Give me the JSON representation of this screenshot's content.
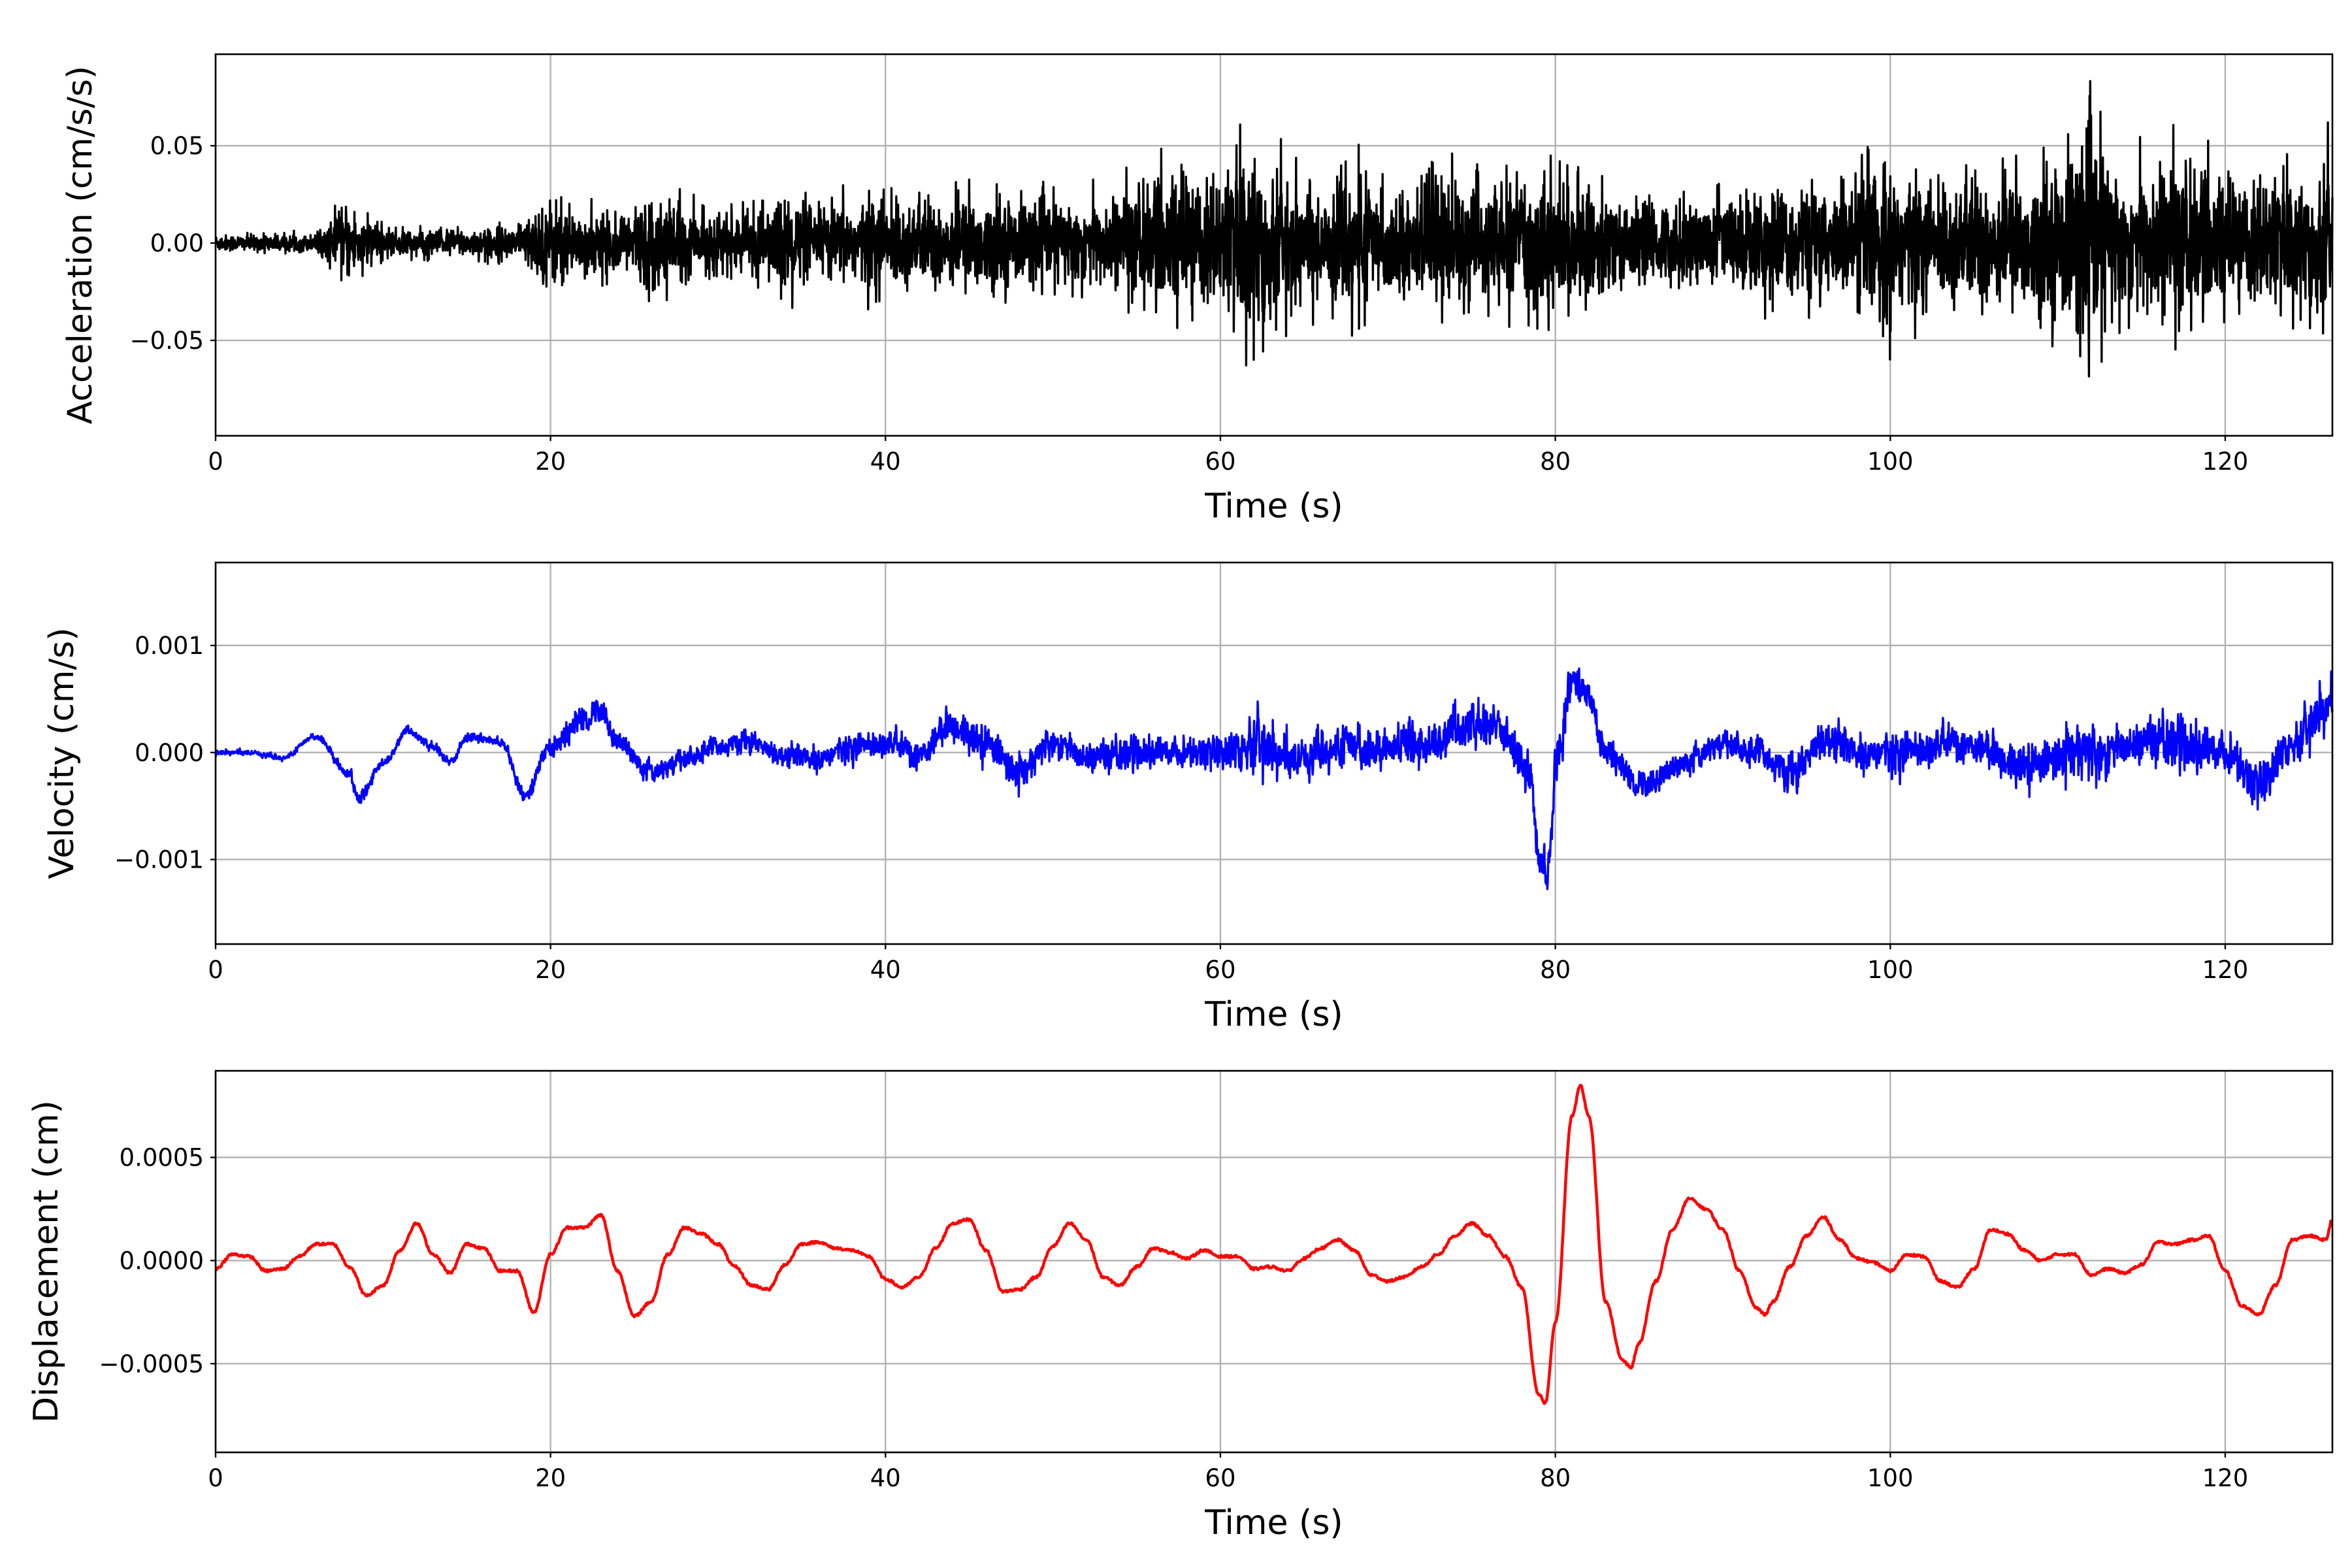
{
  "chart_data": [
    {
      "type": "line",
      "title": "",
      "xlabel": "Time (s)",
      "ylabel": "Acceleration (cm/s/s)",
      "color": "#000000",
      "xlim": [
        0,
        126.4
      ],
      "ylim": [
        -0.099,
        0.097
      ],
      "xticks": [
        0,
        20,
        40,
        60,
        80,
        100,
        120
      ],
      "xtick_labels": [
        "0",
        "20",
        "40",
        "60",
        "80",
        "100",
        "120"
      ],
      "yticks": [
        -0.05,
        0,
        0.05
      ],
      "ytick_labels": [
        "−0.05",
        "0.00",
        "0.05"
      ],
      "grid": true,
      "signal": "broadband noise, zero mean",
      "trend_t": [
        0,
        126.4
      ],
      "trend_v": [
        0,
        0
      ],
      "envelope_step_s": 2,
      "peak_envelope": [
        0.006,
        0.006,
        0.006,
        0.006,
        0.028,
        0.01,
        0.01,
        0.01,
        0.01,
        0.012,
        0.033,
        0.022,
        0.02,
        0.035,
        0.025,
        0.02,
        0.022,
        0.035,
        0.025,
        0.03,
        0.035,
        0.03,
        0.035,
        0.032,
        0.03,
        0.03,
        0.03,
        0.035,
        0.045,
        0.05,
        0.045,
        0.08,
        0.045,
        0.04,
        0.05,
        0.035,
        0.035,
        0.05,
        0.04,
        0.045,
        0.05,
        0.04,
        0.03,
        0.03,
        0.03,
        0.03,
        0.04,
        0.04,
        0.04,
        0.045,
        0.065,
        0.04,
        0.045,
        0.05,
        0.045,
        0.055,
        0.08,
        0.045,
        0.06,
        0.055,
        0.045,
        0.045,
        0.05,
        0.06
      ]
    },
    {
      "type": "line",
      "title": "",
      "xlabel": "Time (s)",
      "ylabel": "Velocity (cm/s)",
      "color": "#0000ff",
      "xlim": [
        0,
        126.4
      ],
      "ylim": [
        -0.00179,
        0.001775
      ],
      "xticks": [
        0,
        20,
        40,
        60,
        80,
        100,
        120
      ],
      "xtick_labels": [
        "0",
        "20",
        "40",
        "60",
        "80",
        "100",
        "120"
      ],
      "yticks": [
        -0.001,
        0,
        0.001
      ],
      "ytick_labels": [
        "−0.001",
        "0.000",
        "0.001"
      ],
      "grid": true,
      "trend_t": [
        0,
        2,
        4,
        6,
        8,
        8.5,
        10,
        11.5,
        13,
        14,
        15,
        17,
        18.5,
        20,
        22,
        23,
        24,
        26,
        28,
        30,
        32,
        34,
        36,
        38,
        40,
        42,
        44,
        46,
        48,
        50,
        52,
        56,
        60,
        62,
        64,
        68,
        72,
        75,
        77,
        78.5,
        79,
        79.5,
        80.2,
        81,
        82,
        83,
        85,
        88,
        90,
        92,
        94,
        96,
        98,
        100,
        104,
        108,
        112,
        116,
        120,
        122,
        124,
        126,
        126.4
      ],
      "trend_v": [
        0,
        0,
        -5e-05,
        0.00015,
        -0.0002,
        -0.00045,
        -0.0001,
        0.0002,
        5e-05,
        -0.0001,
        0.00015,
        0.0001,
        -0.0004,
        5e-05,
        0.0003,
        0.0004,
        0.0001,
        -0.0002,
        -5e-05,
        5e-05,
        0.0001,
        -5e-05,
        -5e-05,
        5e-05,
        0.0001,
        0,
        0.00025,
        0.0001,
        -0.0002,
        0.0001,
        -5e-05,
        0,
        0,
        0.0001,
        -5e-05,
        5e-05,
        5e-05,
        0.00025,
        0.0002,
        -0.0002,
        -0.001,
        -0.0011,
        0,
        0.0007,
        0.0005,
        0,
        -0.0003,
        -0.0001,
        0.0001,
        0,
        -0.0002,
        0.0001,
        0,
        0,
        0.0001,
        -0.0001,
        0,
        0.0001,
        0,
        -0.0003,
        0.0001,
        0.0004,
        0.0005
      ],
      "envelope_step_s": 2,
      "peak_envelope": [
        5e-05,
        5e-05,
        5e-05,
        5e-05,
        0.0001,
        8e-05,
        8e-05,
        8e-05,
        8e-05,
        0.0001,
        0.0002,
        0.00025,
        0.0002,
        0.0002,
        0.0002,
        0.0002,
        0.0002,
        0.0002,
        0.00025,
        0.00025,
        0.00025,
        0.0003,
        0.0003,
        0.0003,
        0.0003,
        0.0003,
        0.0003,
        0.0003,
        0.0003,
        0.0003,
        0.0003,
        0.0006,
        0.0004,
        0.00035,
        0.0004,
        0.0003,
        0.00035,
        0.00045,
        0.00035,
        0.00035,
        0.0004,
        0.0003,
        0.00025,
        0.00025,
        0.00025,
        0.00025,
        0.0003,
        0.00035,
        0.00035,
        0.00035,
        0.0004,
        0.00035,
        0.00035,
        0.00035,
        0.00035,
        0.0004,
        0.0006,
        0.0004,
        0.00045,
        0.0005,
        0.0004,
        0.0004,
        0.0004,
        0.0005
      ]
    },
    {
      "type": "line",
      "title": "",
      "xlabel": "Time (s)",
      "ylabel": "Displacement (cm)",
      "color": "#ff0000",
      "xlim": [
        0,
        126.4
      ],
      "ylim": [
        -0.00093,
        0.00092
      ],
      "xticks": [
        0,
        20,
        40,
        60,
        80,
        100,
        120
      ],
      "xtick_labels": [
        "0",
        "20",
        "40",
        "60",
        "80",
        "100",
        "120"
      ],
      "yticks": [
        -0.0005,
        0,
        0.0005
      ],
      "ytick_labels": [
        "−0.0005",
        "0.0000",
        "0.0005"
      ],
      "grid": true,
      "trend_t": [
        0,
        1,
        2,
        3,
        4,
        5,
        6,
        7,
        8,
        9,
        10,
        11,
        12,
        13,
        14,
        15,
        16,
        17,
        18,
        19,
        20,
        21,
        22,
        23,
        24,
        25,
        26,
        27,
        28,
        29,
        30,
        31,
        32,
        33,
        34,
        35,
        36,
        37,
        38,
        39,
        40,
        41,
        42,
        43,
        44,
        45,
        46,
        47,
        48,
        49,
        50,
        51,
        52,
        53,
        54,
        55,
        56,
        57,
        58,
        59,
        60,
        61,
        62,
        63,
        64,
        65,
        66,
        67,
        68,
        69,
        70,
        71,
        72,
        73,
        74,
        75,
        76,
        77,
        78,
        79,
        79.4,
        80,
        81,
        81.5,
        82,
        83,
        84,
        84.5,
        85,
        86,
        87,
        88,
        89,
        90,
        91,
        92,
        92.5,
        93,
        94,
        95,
        96,
        97,
        98,
        99,
        100,
        101,
        102,
        103,
        104,
        105,
        106,
        107,
        108,
        109,
        110,
        111,
        112,
        113,
        114,
        115,
        116,
        117,
        118,
        119,
        120,
        121,
        122,
        123,
        124,
        125,
        126,
        126.4
      ],
      "trend_v": [
        -4e-05,
        3e-05,
        2e-05,
        -5e-05,
        -4e-05,
        2e-05,
        8e-05,
        8e-05,
        -3e-05,
        -0.00017,
        -0.00012,
        5e-05,
        0.00018,
        3e-05,
        -6e-05,
        8e-05,
        6e-05,
        -5e-05,
        -5e-05,
        -0.00025,
        3e-05,
        0.00016,
        0.00016,
        0.00022,
        -5e-05,
        -0.00027,
        -0.0002,
        3e-05,
        0.00016,
        0.00013,
        8e-05,
        -3e-05,
        -0.00012,
        -0.00014,
        -2e-05,
        8e-05,
        9e-05,
        6e-05,
        5e-05,
        2e-05,
        -9e-05,
        -0.00013,
        -8e-05,
        6e-05,
        0.00018,
        0.0002,
        5e-05,
        -0.00015,
        -0.00014,
        -8e-05,
        7e-05,
        0.00018,
        0.0001,
        -8e-05,
        -0.00012,
        -3e-05,
        6e-05,
        4e-05,
        1e-05,
        5e-05,
        2e-05,
        2e-05,
        -4e-05,
        -3e-05,
        -5e-05,
        1e-05,
        6e-05,
        0.0001,
        5e-05,
        -7e-05,
        -0.0001,
        -8e-05,
        -3e-05,
        3e-05,
        0.00012,
        0.00018,
        0.00012,
        2e-05,
        -0.00013,
        -0.00065,
        -0.00069,
        -0.0003,
        0.0007,
        0.00085,
        0.0007,
        -0.0002,
        -0.00048,
        -0.00052,
        -0.0004,
        -0.0001,
        0.00015,
        0.0003,
        0.00025,
        0.00015,
        -5e-05,
        -0.00023,
        -0.00026,
        -0.0002,
        -3e-05,
        0.00012,
        0.00021,
        0.0001,
        1e-05,
        -1e-05,
        -5e-05,
        3e-05,
        2e-05,
        -0.0001,
        -0.00013,
        -4e-05,
        0.00015,
        0.00013,
        5e-05,
        0,
        3e-05,
        3e-05,
        -7e-05,
        -4e-05,
        -6e-05,
        -2e-05,
        9e-05,
        8e-05,
        0.0001,
        0.00012,
        -5e-05,
        -0.00022,
        -0.00026,
        -0.00012,
        0.0001,
        0.00012,
        0.0001,
        0.0002
      ],
      "envelope_step_s": 2,
      "peak_envelope": [
        6e-06
      ]
    }
  ]
}
